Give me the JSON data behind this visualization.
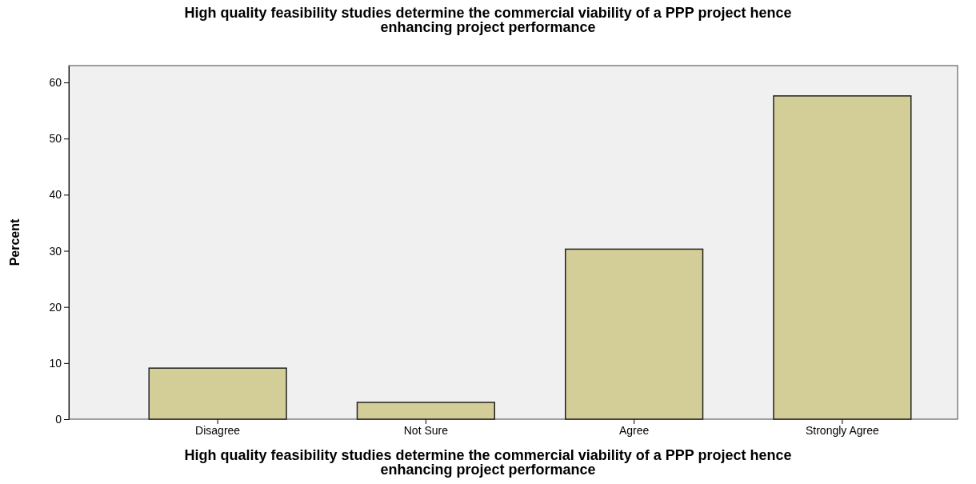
{
  "chart_data": {
    "type": "bar",
    "title": "High quality feasibility studies determine the commercial viability of a PPP project hence enhancing project performance",
    "xlabel": "High quality feasibility studies determine the commercial viability of a PPP project hence enhancing project performance",
    "ylabel": "Percent",
    "categories": [
      "Disagree",
      "Not Sure",
      "Agree",
      "Strongly Agree"
    ],
    "values": [
      9.1,
      3.0,
      30.3,
      57.6
    ],
    "color": "#d3ce97",
    "ylim": [
      0,
      63
    ],
    "yticks": [
      0,
      10,
      20,
      30,
      40,
      50,
      60
    ],
    "grid": false
  }
}
